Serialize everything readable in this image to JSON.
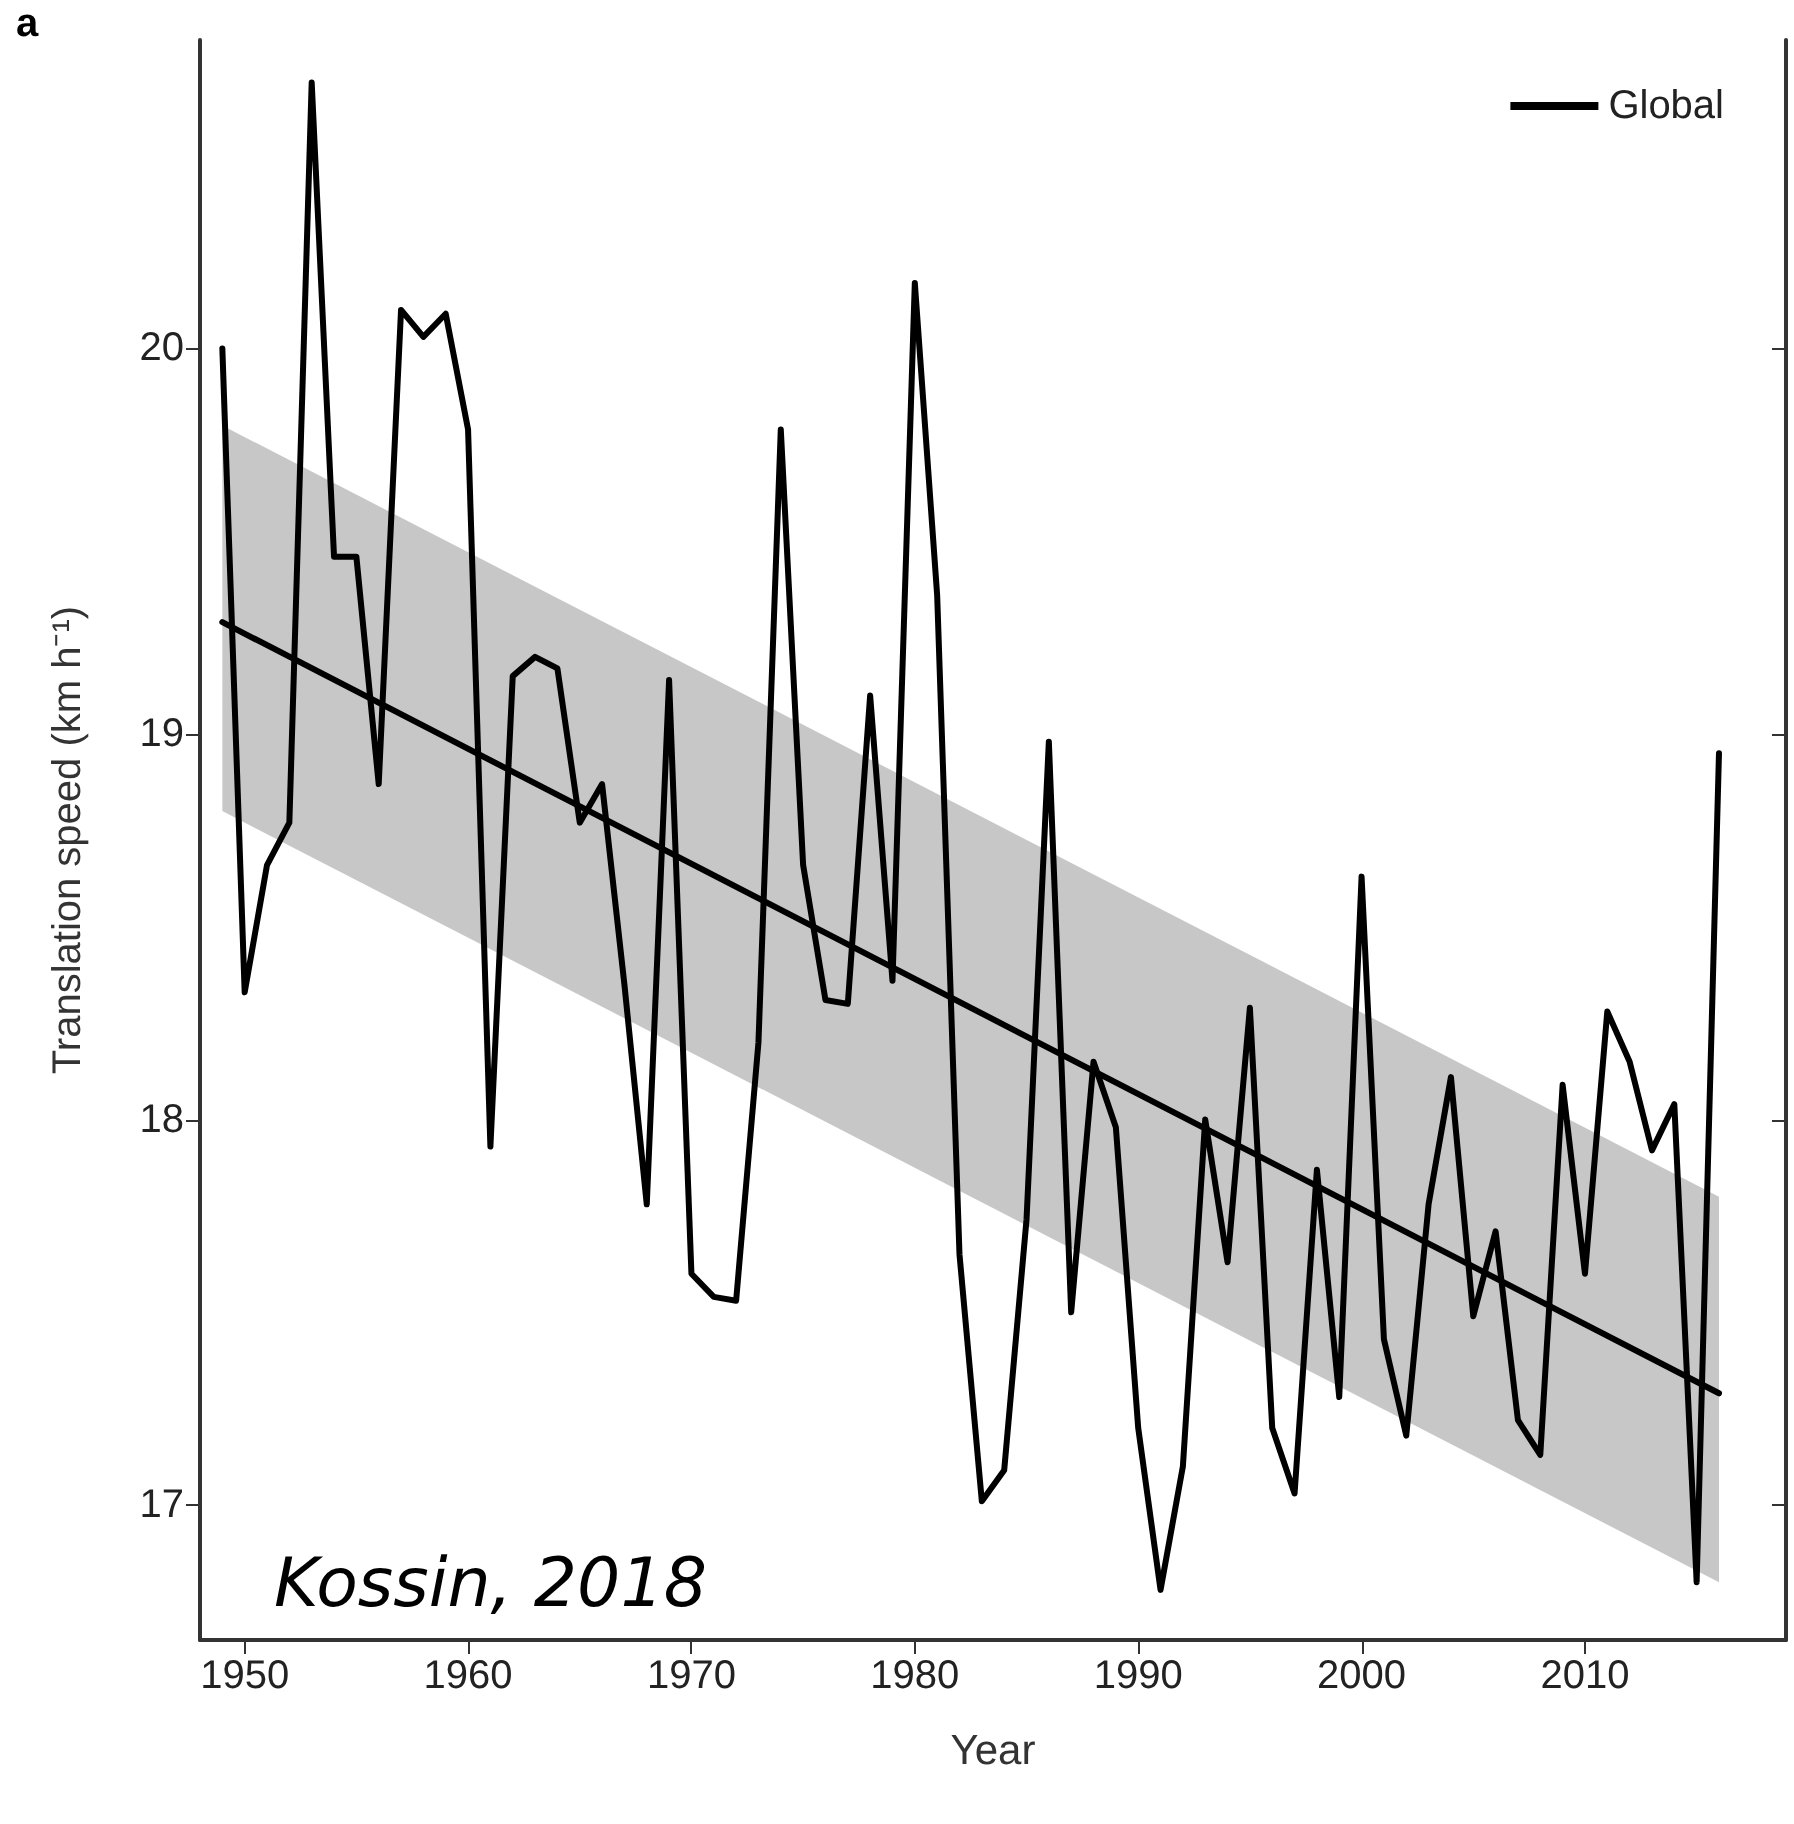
{
  "chart_data": {
    "type": "line",
    "xlabel": "Year",
    "ylabel": "Translation speed (km h⁻¹)",
    "annotations": [
      "a",
      "Kossin, 2018"
    ],
    "xlim": [
      1948,
      2019
    ],
    "xticks": [
      1950,
      1960,
      1970,
      1980,
      1990,
      2000,
      2010
    ],
    "ylim": [
      16.65,
      20.8
    ],
    "yticks": [
      17,
      18,
      19,
      20
    ],
    "legend": "top right",
    "grid": false,
    "marker": "none",
    "line_style": "solid",
    "series": [
      {
        "name": "Global",
        "color": "#000000",
        "x": [
          1949,
          1950,
          1951,
          1952,
          1953,
          1954,
          1955,
          1956,
          1957,
          1958,
          1959,
          1960,
          1961,
          1962,
          1963,
          1964,
          1965,
          1966,
          1967,
          1968,
          1969,
          1970,
          1971,
          1972,
          1973,
          1974,
          1975,
          1976,
          1977,
          1978,
          1979,
          1980,
          1981,
          1982,
          1983,
          1984,
          1985,
          1986,
          1987,
          1988,
          1989,
          1990,
          1991,
          1992,
          1993,
          1994,
          1995,
          1996,
          1997,
          1998,
          1999,
          2000,
          2001,
          2002,
          2003,
          2004,
          2005,
          2006,
          2007,
          2008,
          2009,
          2010,
          2011,
          2012,
          2013,
          2014,
          2015,
          2016
        ],
        "values": [
          20.0,
          18.33,
          18.66,
          18.77,
          20.69,
          19.46,
          19.46,
          18.87,
          20.1,
          20.03,
          20.09,
          19.79,
          17.93,
          19.15,
          19.2,
          19.17,
          18.77,
          18.87,
          18.35,
          17.78,
          19.14,
          17.6,
          17.54,
          17.53,
          18.2,
          19.79,
          18.66,
          18.31,
          18.3,
          19.1,
          18.36,
          20.17,
          19.36,
          17.65,
          17.01,
          17.09,
          17.74,
          18.98,
          17.5,
          18.15,
          17.98,
          17.2,
          16.78,
          17.1,
          18.0,
          17.63,
          18.29,
          17.2,
          17.03,
          17.87,
          17.28,
          18.63,
          17.43,
          17.18,
          17.78,
          18.11,
          17.49,
          17.71,
          17.22,
          17.13,
          18.09,
          17.6,
          18.28,
          18.15,
          17.92,
          18.04,
          16.8,
          18.95
        ]
      },
      {
        "type": "line",
        "color": "#000000",
        "x": [
          1949,
          2016
        ],
        "values": [
          19.29,
          17.29
        ],
        "lower": [
          18.8,
          16.8
        ],
        "upper": [
          19.8,
          17.8
        ]
      }
    ]
  }
}
